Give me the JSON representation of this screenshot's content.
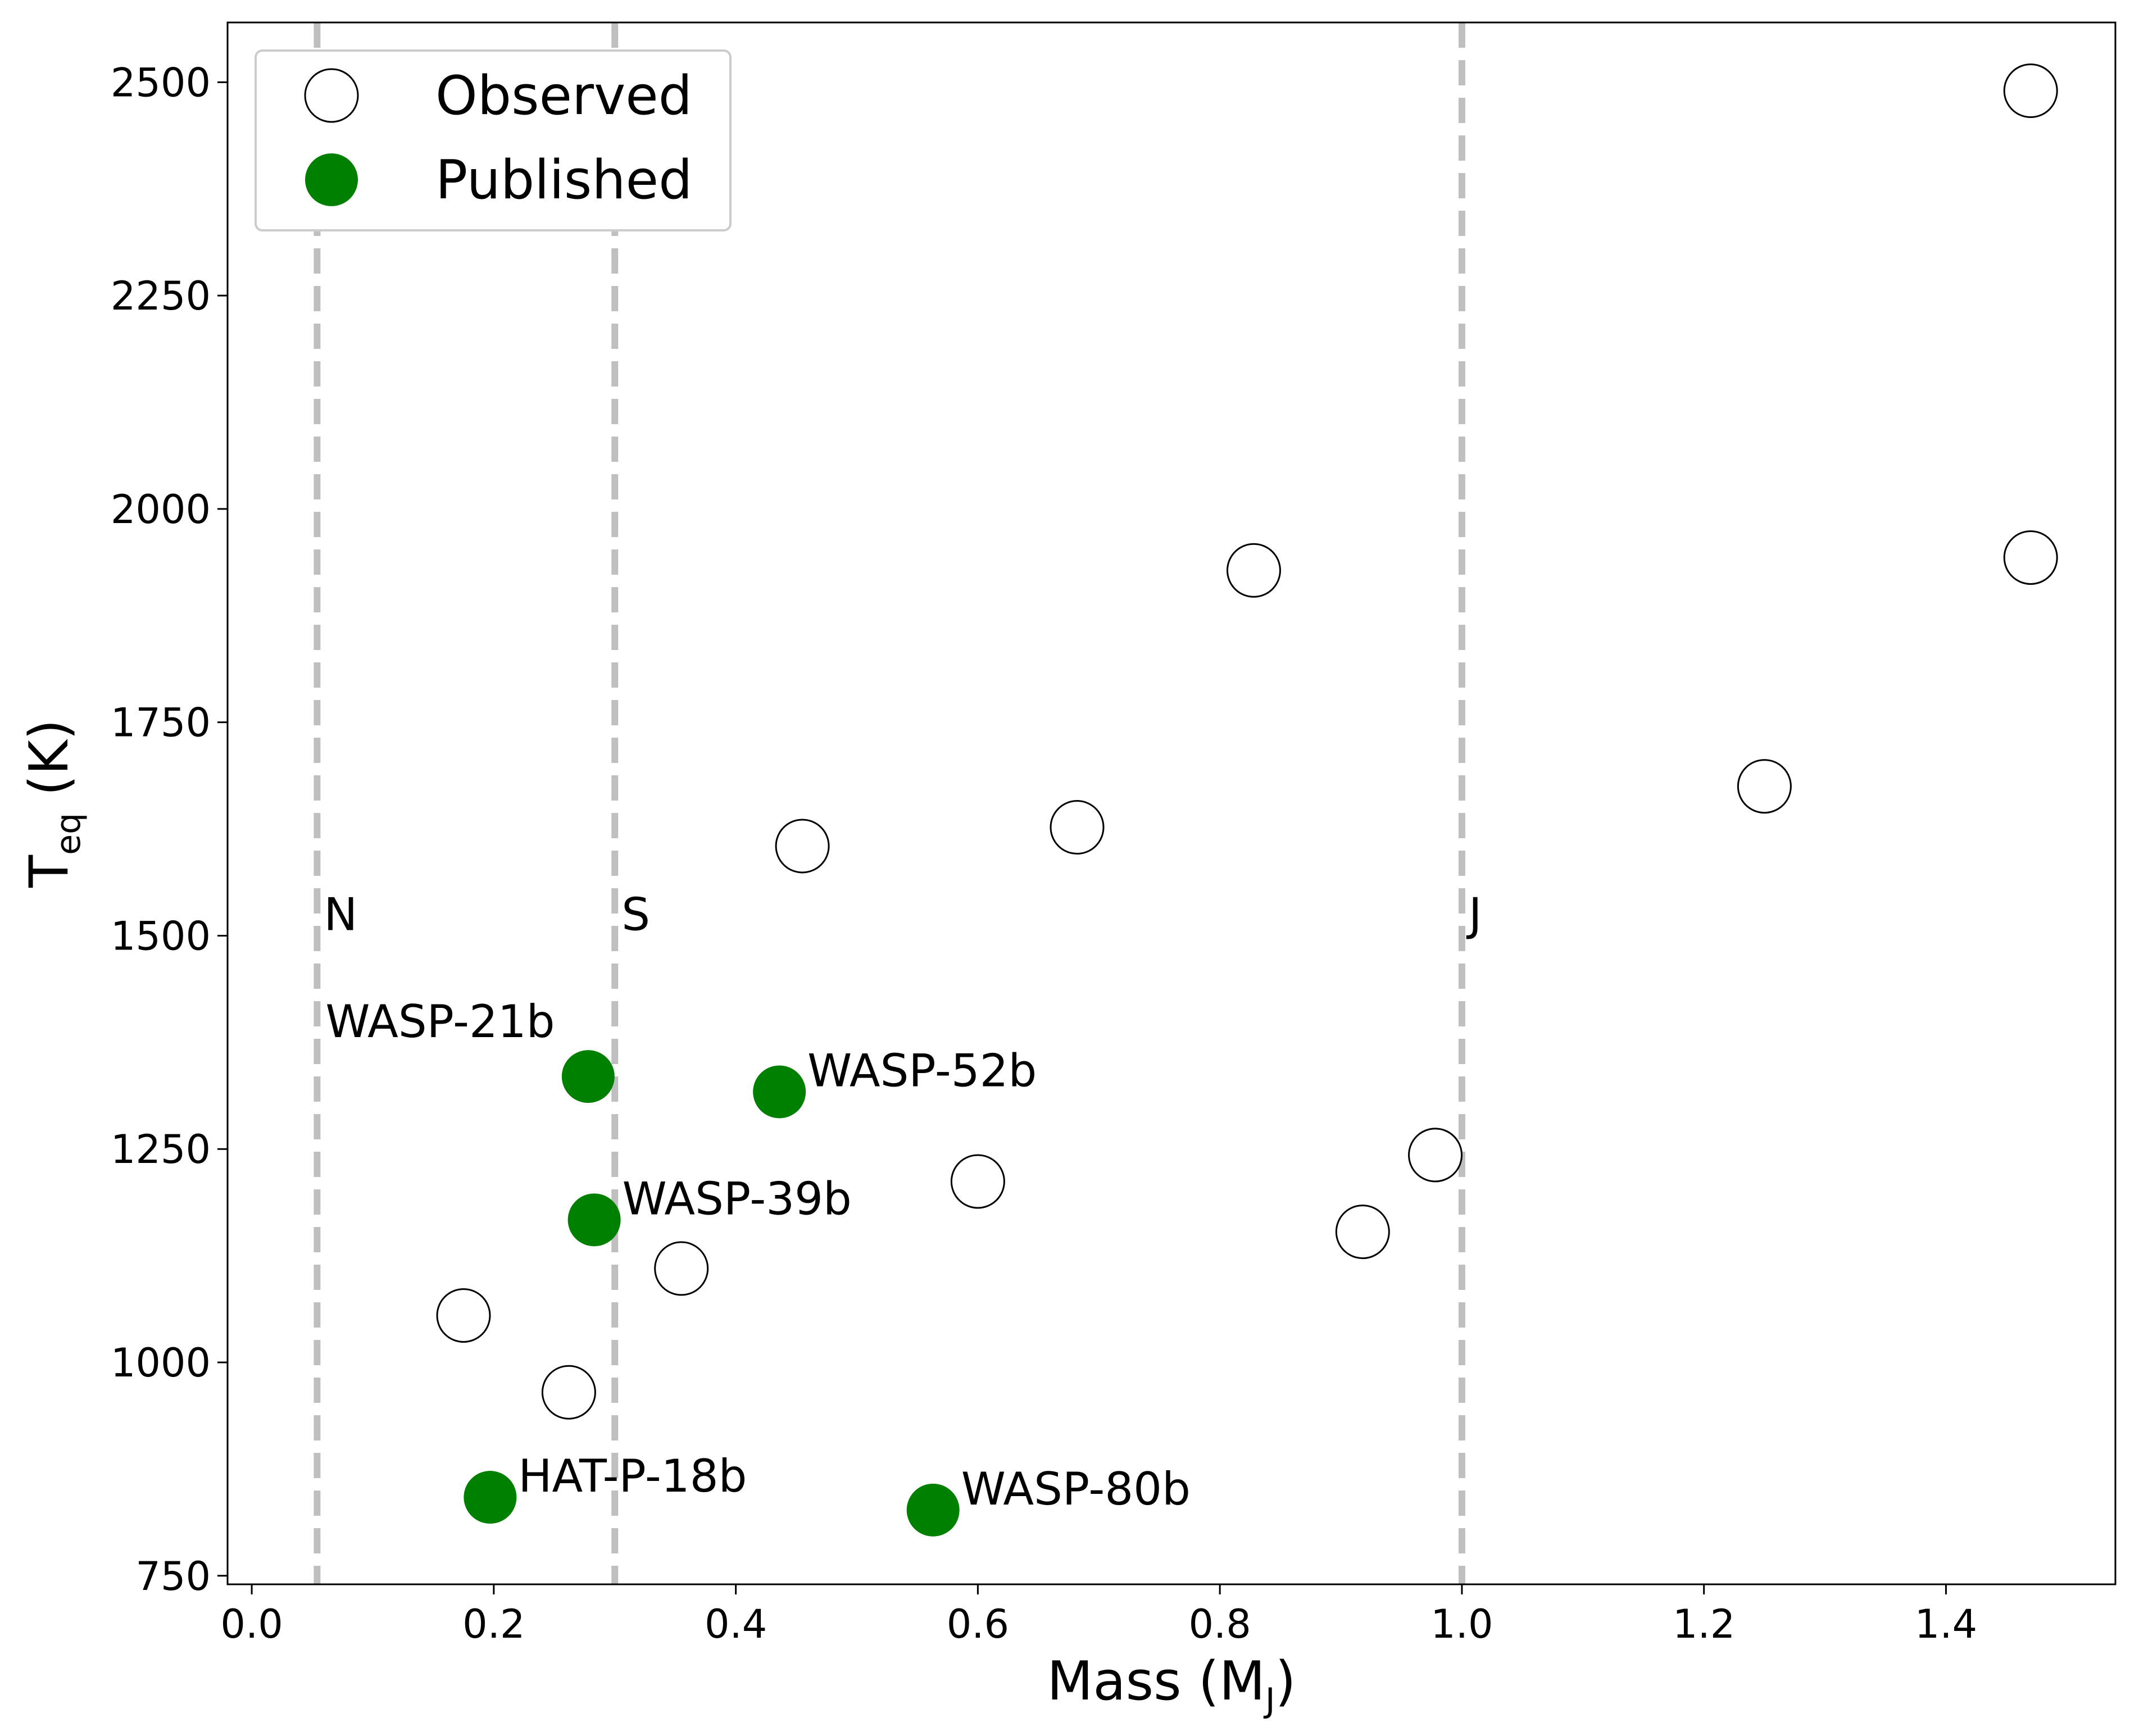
{
  "chart_data": {
    "type": "scatter",
    "xlabel": {
      "main": "Mass (M",
      "sub": "J",
      "tail": ")"
    },
    "ylabel": {
      "main": "T",
      "sub": "eq",
      "tail": " (K)"
    },
    "xlim": [
      -0.02,
      1.54
    ],
    "ylim": [
      740,
      2570
    ],
    "x_ticks": [
      {
        "value": 0.0,
        "label": "0.0"
      },
      {
        "value": 0.2,
        "label": "0.2"
      },
      {
        "value": 0.4,
        "label": "0.4"
      },
      {
        "value": 0.6,
        "label": "0.6"
      },
      {
        "value": 0.8,
        "label": "0.8"
      },
      {
        "value": 1.0,
        "label": "1.0"
      },
      {
        "value": 1.2,
        "label": "1.2"
      },
      {
        "value": 1.4,
        "label": "1.4"
      }
    ],
    "y_ticks": [
      {
        "value": 750,
        "label": "750"
      },
      {
        "value": 1000,
        "label": "1000"
      },
      {
        "value": 1250,
        "label": "1250"
      },
      {
        "value": 1500,
        "label": "1500"
      },
      {
        "value": 1750,
        "label": "1750"
      },
      {
        "value": 2000,
        "label": "2000"
      },
      {
        "value": 2250,
        "label": "2250"
      },
      {
        "value": 2500,
        "label": "2500"
      }
    ],
    "legend": {
      "placement": "top-left",
      "entries": [
        {
          "name": "Observed",
          "series": "observed"
        },
        {
          "name": "Published",
          "series": "published"
        }
      ]
    },
    "colors": {
      "published": "#008000",
      "observed_edge": "#000000",
      "observed_fill": "#ffffff",
      "reference_line": "#bfbfbf"
    },
    "reference_lines": [
      {
        "x": 0.054,
        "label": "N"
      },
      {
        "x": 0.3,
        "label": "S"
      },
      {
        "x": 1.0,
        "label": "J"
      }
    ],
    "series": [
      {
        "name": "Observed",
        "key": "observed",
        "points": [
          {
            "x": 0.175,
            "y": 1055
          },
          {
            "x": 0.262,
            "y": 965
          },
          {
            "x": 0.355,
            "y": 1110
          },
          {
            "x": 0.455,
            "y": 1605
          },
          {
            "x": 0.6,
            "y": 1212
          },
          {
            "x": 0.682,
            "y": 1627
          },
          {
            "x": 0.828,
            "y": 1928
          },
          {
            "x": 0.918,
            "y": 1153
          },
          {
            "x": 0.978,
            "y": 1243
          },
          {
            "x": 1.25,
            "y": 1675
          },
          {
            "x": 1.47,
            "y": 2490
          },
          {
            "x": 1.47,
            "y": 1943
          }
        ]
      },
      {
        "name": "Published",
        "key": "published",
        "points": [
          {
            "x": 0.278,
            "y": 1335,
            "label": "WASP-21b"
          },
          {
            "x": 0.436,
            "y": 1317,
            "label": "WASP-52b"
          },
          {
            "x": 0.283,
            "y": 1167,
            "label": "WASP-39b"
          },
          {
            "x": 0.197,
            "y": 842,
            "label": "HAT-P-18b"
          },
          {
            "x": 0.563,
            "y": 827,
            "label": "WASP-80b"
          }
        ]
      }
    ]
  }
}
